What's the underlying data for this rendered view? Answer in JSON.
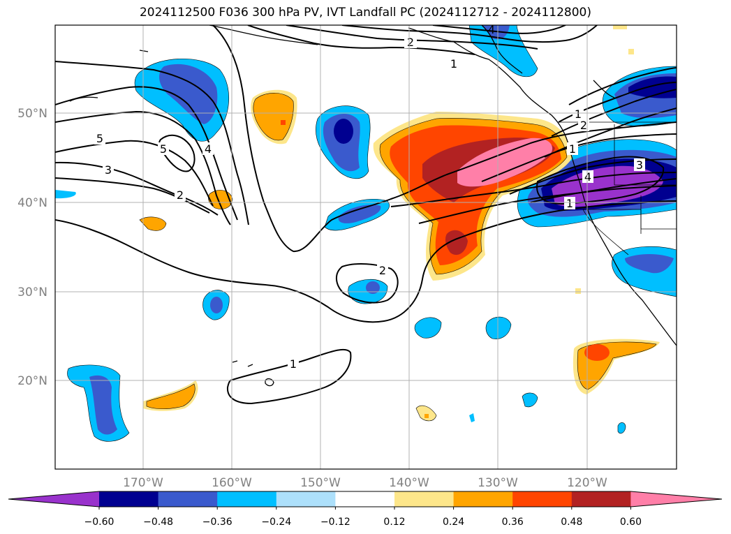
{
  "title": "2024112500 F036 300 hPa PV, IVT Landfall PC (2024112712 - 2024112800)",
  "lat_labels": [
    "50°N",
    "40°N",
    "30°N",
    "20°N"
  ],
  "lon_labels": [
    "170°W",
    "160°W",
    "150°W",
    "140°W",
    "130°W",
    "120°W"
  ],
  "colorbar": {
    "tick_labels": [
      "−0.60",
      "−0.48",
      "−0.36",
      "−0.24",
      "−0.12",
      "0.12",
      "0.24",
      "0.36",
      "0.48",
      "0.60"
    ],
    "colors": [
      "#9932cc",
      "#000090",
      "#3a5acd",
      "#00bfff",
      "#ade0fb",
      "#ffffff",
      "#fde68a",
      "#ffa500",
      "#ff4500",
      "#b22222",
      "#ff7fa8"
    ]
  },
  "contour_labels": [
    "2",
    "1",
    "1",
    "2",
    "5",
    "5",
    "4",
    "3",
    "2",
    "2",
    "1",
    "1",
    "3",
    "4",
    "1",
    "4"
  ],
  "colors": {
    "border": "#000000",
    "grid": "#b0b0b0"
  }
}
